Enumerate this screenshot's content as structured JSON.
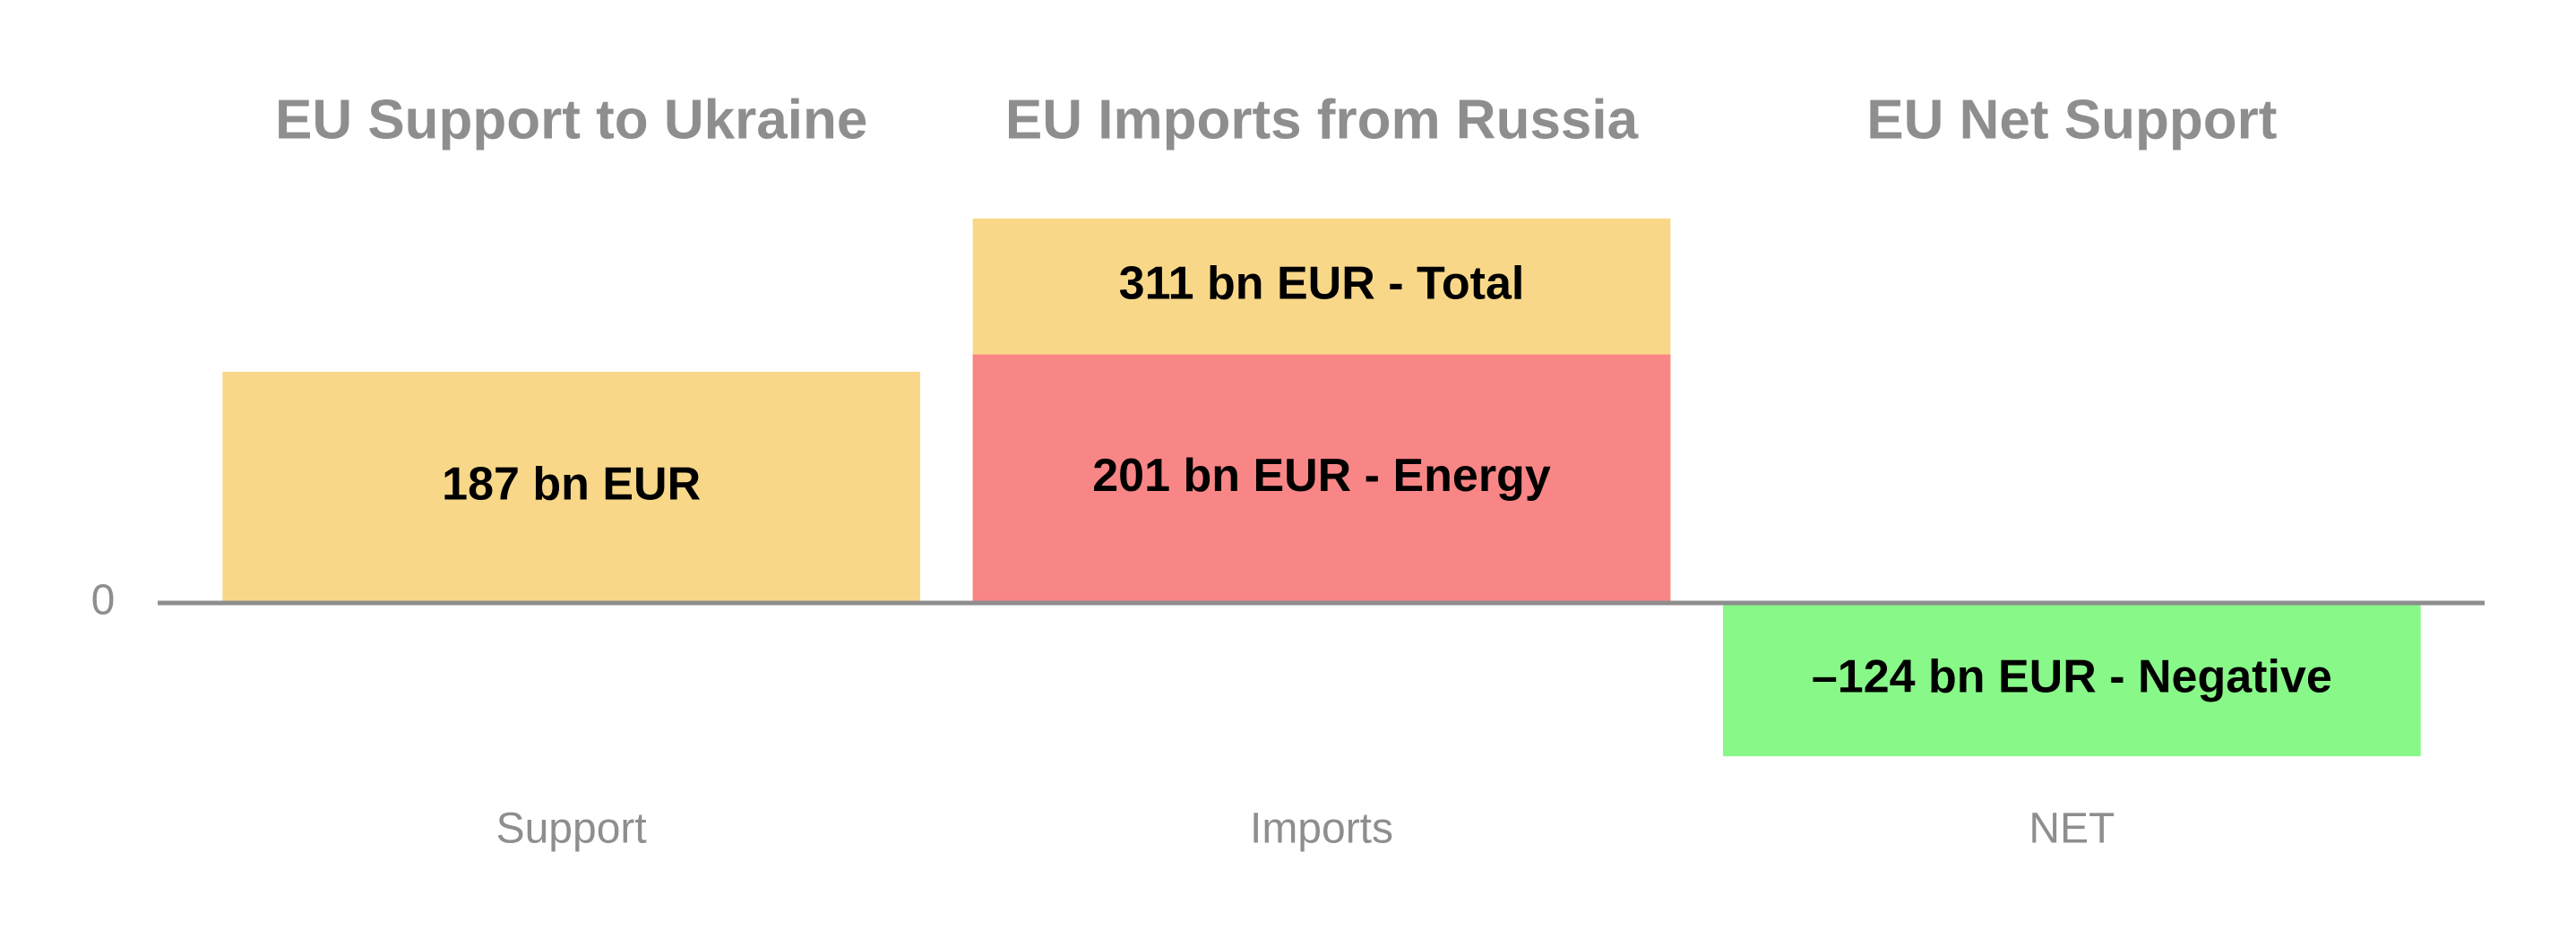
{
  "chart_data": {
    "type": "bar",
    "barmode": "overlay",
    "titles": [
      "EU Support to Ukraine",
      "EU Imports from Russia",
      "EU Net Support"
    ],
    "categories": [
      "Support",
      "Imports",
      "NET"
    ],
    "series": [
      {
        "color": "#f8d888",
        "values": [
          187,
          311,
          null
        ],
        "value_labels": [
          "187 bn EUR",
          "311 bn EUR - Total",
          null
        ]
      },
      {
        "color": "#f98686",
        "values": [
          null,
          201,
          null
        ],
        "value_labels": [
          null,
          "201 bn EUR - Energy",
          null
        ]
      },
      {
        "color": "#88f888",
        "values": [
          null,
          null,
          -124
        ],
        "value_labels": [
          null,
          null,
          "–124 bn EUR - Negative"
        ]
      }
    ],
    "ylim": [
      -150,
      350
    ],
    "yticks": [
      0
    ]
  }
}
